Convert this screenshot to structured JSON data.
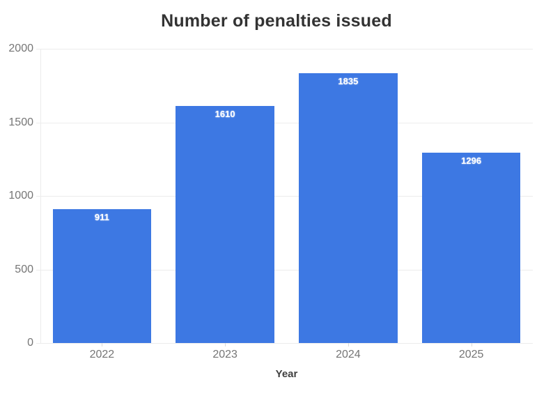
{
  "chart_data": {
    "type": "bar",
    "title": "Number of penalties issued",
    "xlabel": "Year",
    "ylabel": "",
    "categories": [
      "2022",
      "2023",
      "2024",
      "2025"
    ],
    "values": [
      911,
      1610,
      1835,
      1296
    ],
    "ylim": [
      0,
      2000
    ],
    "yticks": [
      0,
      500,
      1000,
      1500,
      2000
    ],
    "grid": "horizontal-only",
    "legend": "none",
    "colors": {
      "bar": "#3d78e3",
      "bar_value_label": "#ffffff",
      "title": "#333333",
      "tick_label": "#757575",
      "gridline": "#ececec",
      "axis_title": "#404040",
      "background": "#ffffff"
    }
  }
}
